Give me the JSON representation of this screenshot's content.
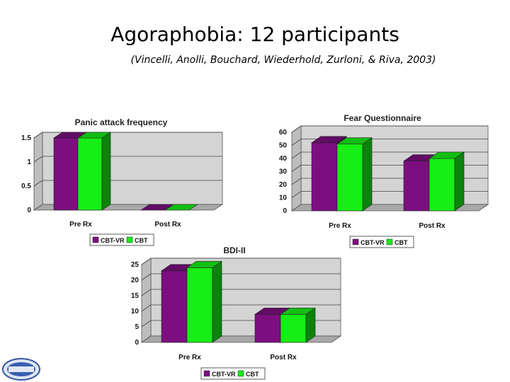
{
  "slide": {
    "title": "Agoraphobia:  12 participants",
    "subtitle": "(Vincelli, Anolli, Bouchard, Wiederhold, Zurloni, & Riva, 2003)"
  },
  "colors": {
    "cbt_vr": "#7b0f80",
    "cbt": "#16ee16",
    "wall": "#d4d4d4",
    "floor": "#a8a8a8"
  },
  "chart_data": [
    {
      "type": "bar",
      "title": "Panic attack frequency",
      "categories": [
        "Pre Rx",
        "Post Rx"
      ],
      "series": [
        {
          "name": "CBT-VR",
          "values": [
            1.5,
            0
          ]
        },
        {
          "name": "CBT",
          "values": [
            1.5,
            0
          ]
        }
      ],
      "ylim": [
        0,
        1.5
      ],
      "yticks": [
        "0",
        "0.5",
        "1",
        "1.5"
      ],
      "legend": "bottom"
    },
    {
      "type": "bar",
      "title": "Fear Questionnaire",
      "categories": [
        "Pre Rx",
        "Post Rx"
      ],
      "series": [
        {
          "name": "CBT-VR",
          "values": [
            52,
            38
          ]
        },
        {
          "name": "CBT",
          "values": [
            51,
            40
          ]
        }
      ],
      "ylim": [
        0,
        50
      ],
      "yticks": [
        "0",
        "10",
        "20",
        "30",
        "40",
        "50",
        "60"
      ],
      "legend": "bottom"
    },
    {
      "type": "bar",
      "title": "BDI-II",
      "categories": [
        "Pre Rx",
        "Post Rx"
      ],
      "series": [
        {
          "name": "CBT-VR",
          "values": [
            23,
            9
          ]
        },
        {
          "name": "CBT",
          "values": [
            24,
            9
          ]
        }
      ],
      "ylim": [
        0,
        25
      ],
      "yticks": [
        "0",
        "5",
        "10",
        "15",
        "20",
        "25"
      ],
      "legend": "bottom"
    }
  ]
}
